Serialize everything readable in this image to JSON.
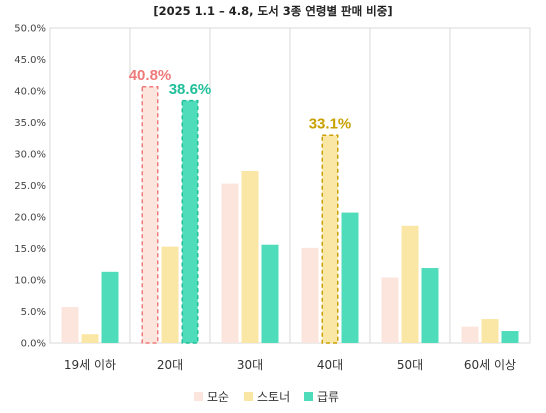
{
  "chart_data": {
    "type": "bar",
    "title": "[2025 1.1 – 4.8, 도서 3종 연령별 판매 비중]",
    "categories": [
      "19세 이하",
      "20대",
      "30대",
      "40대",
      "50대",
      "60세 이상"
    ],
    "ylim": [
      0,
      50
    ],
    "yticks": [
      "0.0%",
      "5.0%",
      "10.0%",
      "15.0%",
      "20.0%",
      "25.0%",
      "30.0%",
      "35.0%",
      "40.0%",
      "45.0%",
      "50.0%"
    ],
    "grid": "vertical category separators",
    "legend_position": "bottom",
    "series": [
      {
        "name": "모순",
        "color": "#fbe5dc",
        "values": [
          5.7,
          40.8,
          25.3,
          15.1,
          10.4,
          2.6
        ]
      },
      {
        "name": "스토너",
        "color": "#fae7a5",
        "values": [
          1.4,
          15.3,
          27.3,
          33.1,
          18.6,
          3.8
        ]
      },
      {
        "name": "급류",
        "color": "#4fdcbb",
        "values": [
          11.3,
          38.6,
          15.6,
          20.7,
          11.9,
          1.9
        ]
      }
    ],
    "annotations": [
      {
        "text": "40.8%",
        "series": 0,
        "category": 1,
        "color": "#f07a7a"
      },
      {
        "text": "38.6%",
        "series": 2,
        "category": 1,
        "color": "#1fbf9a"
      },
      {
        "text": "33.1%",
        "series": 1,
        "category": 3,
        "color": "#c8a000"
      }
    ]
  }
}
